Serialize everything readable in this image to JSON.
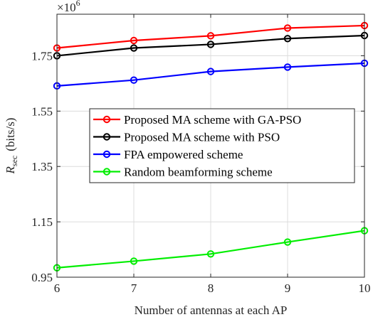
{
  "chart_data": {
    "type": "line",
    "title": "",
    "xlabel": "Number of antennas at each AP",
    "ylabel_main": "R",
    "ylabel_sub": "sec",
    "ylabel_unit": "(bits/s)",
    "y_exponent_label": "×10",
    "y_exponent_power": "6",
    "x": [
      6,
      7,
      8,
      9,
      10
    ],
    "xlim": [
      6,
      10
    ],
    "ylim": [
      0.95,
      1.9
    ],
    "xticks": [
      6,
      7,
      8,
      9,
      10
    ],
    "xtick_labels": [
      "6",
      "7",
      "8",
      "9",
      "10"
    ],
    "yticks": [
      0.95,
      1.15,
      1.35,
      1.55,
      1.75
    ],
    "ytick_labels": [
      "0.95",
      "1.15",
      "1.35",
      "1.55",
      "1.75"
    ],
    "grid": true,
    "legend_position": "center-right",
    "series": [
      {
        "name": "Proposed MA scheme with GA-PSO",
        "color": "#ff0000",
        "values": [
          1.778,
          1.805,
          1.822,
          1.85,
          1.859
        ]
      },
      {
        "name": "Proposed MA scheme with PSO",
        "color": "#000000",
        "values": [
          1.75,
          1.778,
          1.791,
          1.812,
          1.823
        ]
      },
      {
        "name": "FPA empowered scheme",
        "color": "#0000ff",
        "values": [
          1.641,
          1.662,
          1.693,
          1.709,
          1.723
        ]
      },
      {
        "name": "Random beamforming scheme",
        "color": "#00ee00",
        "values": [
          0.984,
          1.008,
          1.034,
          1.077,
          1.118
        ]
      }
    ]
  }
}
